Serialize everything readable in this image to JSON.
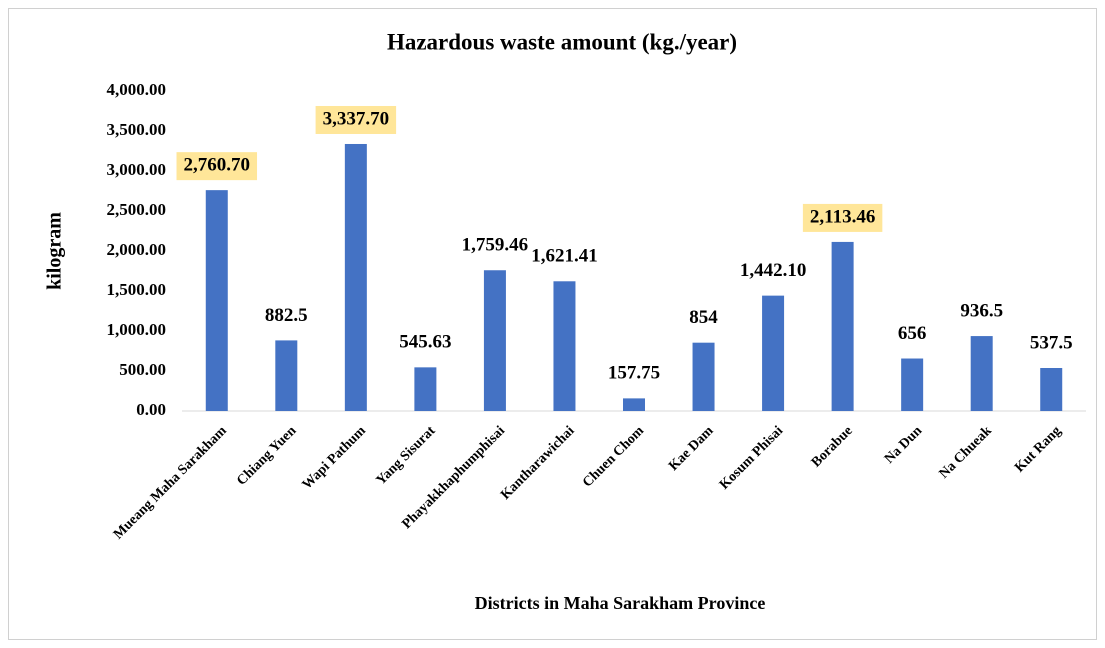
{
  "chart_data": {
    "type": "bar",
    "title": "Hazardous waste amount (kg./year)",
    "x_label": "Districts in  Maha Sarakham Province",
    "y_label": "kilogram",
    "categories": [
      "Mueang Maha Sarakham",
      "Chiang Yuen",
      "Wapi Pathum",
      "Yang Sisurat",
      "Phayakkhaphumphisai",
      "Kantharawichai",
      "Chuen Chom",
      "Kae Dam",
      "Kosum Phisai",
      "Borabue",
      "Na Dun",
      "Na Chueak",
      "Kut Rang"
    ],
    "values": [
      2760.7,
      882.5,
      3337.7,
      545.63,
      1759.46,
      1621.41,
      157.75,
      854,
      1442.1,
      2113.46,
      656,
      936.5,
      537.5
    ],
    "value_labels": [
      "2,760.70",
      "882.5",
      "3,337.70",
      "545.63",
      "1,759.46",
      "1,621.41",
      "157.75",
      "854",
      "1,442.10",
      "2,113.46",
      "656",
      "936.5",
      "537.5"
    ],
    "color": "#4472c4",
    "highlight": {
      "color": "#ffe699",
      "indices": [
        0,
        2,
        9
      ]
    },
    "ylim": [
      0,
      4000
    ],
    "yticks": [
      {
        "value": 0,
        "label": "0.00"
      },
      {
        "value": 500,
        "label": "500.00"
      },
      {
        "value": 1000,
        "label": "1,000.00"
      },
      {
        "value": 1500,
        "label": "1,500.00"
      },
      {
        "value": 2000,
        "label": "2,000.00"
      },
      {
        "value": 2500,
        "label": "2,500.00"
      },
      {
        "value": 3000,
        "label": "3,000.00"
      },
      {
        "value": 3500,
        "label": "3,500.00"
      },
      {
        "value": 4000,
        "label": "4,000.00"
      }
    ],
    "grid": false
  }
}
